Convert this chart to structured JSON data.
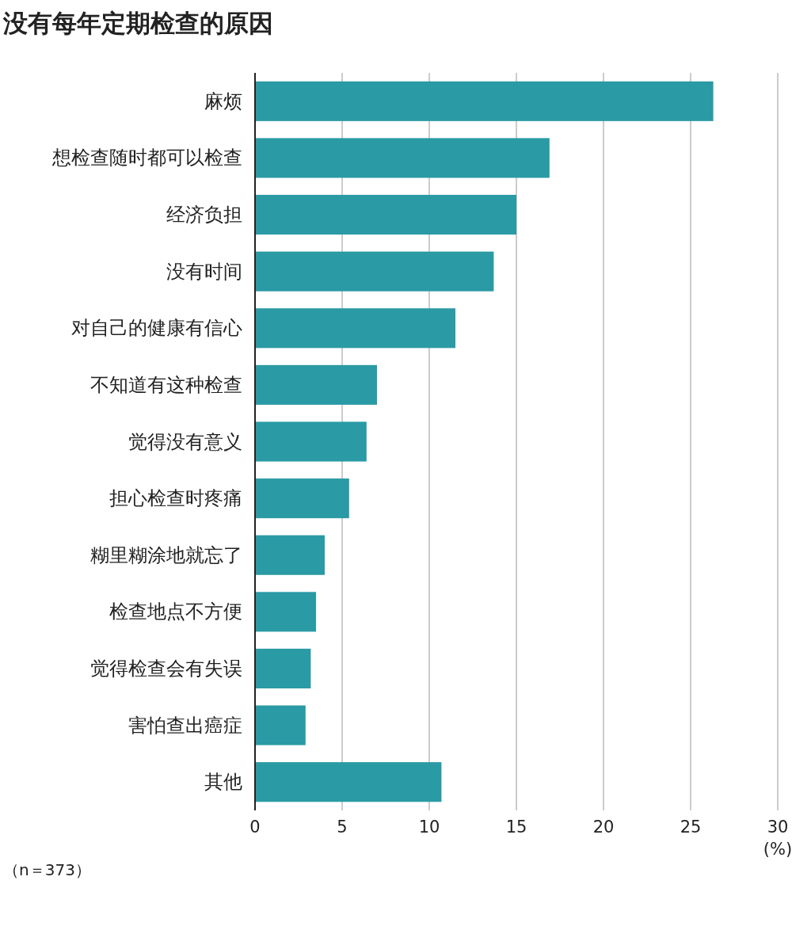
{
  "chart_data": {
    "type": "bar",
    "orientation": "horizontal",
    "title": "没有每年定期检查的原因",
    "categories": [
      "麻烦",
      "想检查随时都可以检查",
      "经济负担",
      "没有时间",
      "对自己的健康有信心",
      "不知道有这种检查",
      "觉得没有意义",
      "担心检查时疼痛",
      "糊里糊涂地就忘了",
      "检查地点不方便",
      "觉得检查会有失误",
      "害怕查出癌症",
      "其他"
    ],
    "values": [
      26.3,
      16.9,
      15.0,
      13.7,
      11.5,
      7.0,
      6.4,
      5.4,
      4.0,
      3.5,
      3.2,
      2.9,
      10.7
    ],
    "color": "#2a9aa5",
    "xlim": [
      0,
      30
    ],
    "xticks": [
      0,
      5,
      10,
      15,
      20,
      25,
      30
    ],
    "xlabel": "(%)",
    "grid": "x",
    "annotations": [
      "（n＝373）"
    ]
  }
}
